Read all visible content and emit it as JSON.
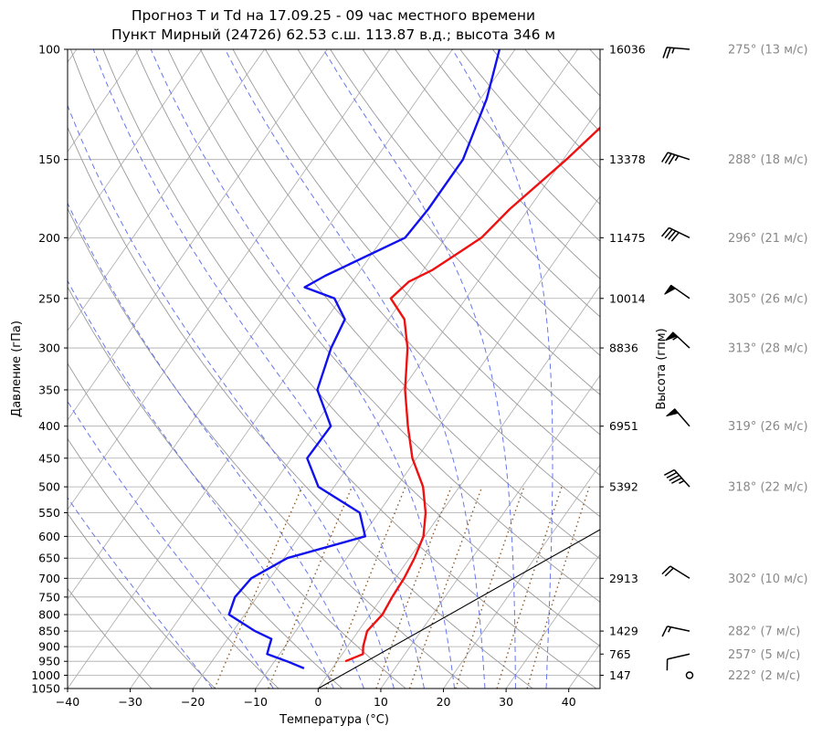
{
  "title_line1": "Прогноз T и Td на 17.09.25 - 09 час местного времени",
  "title_line2": "Пункт Мирный (24726) 62.53 с.ш. 113.87 в.д.; высота 346 м",
  "chart_data": {
    "type": "line",
    "xlabel": "Температура (°C)",
    "ylabel": "Давление (гПа)",
    "ylabel_right": "Высота (гпм)",
    "xlim": [
      -40,
      45
    ],
    "ylim": [
      1050,
      100
    ],
    "y_scale": "log",
    "grid": true,
    "x_ticks": [
      "−40",
      "−30",
      "−20",
      "−10",
      "0",
      "10",
      "20",
      "30",
      "40"
    ],
    "pressure_ticks": [
      "100",
      "150",
      "200",
      "250",
      "300",
      "350",
      "400",
      "450",
      "500",
      "550",
      "600",
      "650",
      "700",
      "750",
      "800",
      "850",
      "900",
      "950",
      "1000",
      "1050"
    ],
    "height_ticks": [
      {
        "p": 100,
        "label": "16036"
      },
      {
        "p": 150,
        "label": "13378"
      },
      {
        "p": 200,
        "label": "11475"
      },
      {
        "p": 250,
        "label": "10014"
      },
      {
        "p": 300,
        "label": "8836"
      },
      {
        "p": 400,
        "label": "6951"
      },
      {
        "p": 500,
        "label": "5392"
      },
      {
        "p": 700,
        "label": "2913"
      },
      {
        "p": 850,
        "label": "1429"
      },
      {
        "p": 925,
        "label": "765"
      },
      {
        "p": 1000,
        "label": "147"
      }
    ],
    "series": [
      {
        "color": "#ee1111",
        "points": [
          [
            950,
            1.3
          ],
          [
            925,
            3.3
          ],
          [
            900,
            2.5
          ],
          [
            850,
            1.4
          ],
          [
            800,
            2.0
          ],
          [
            750,
            1.6
          ],
          [
            700,
            1.4
          ],
          [
            650,
            0.8
          ],
          [
            600,
            -0.2
          ],
          [
            550,
            -2.5
          ],
          [
            500,
            -5.8
          ],
          [
            450,
            -10.7
          ],
          [
            400,
            -15.0
          ],
          [
            350,
            -19.5
          ],
          [
            300,
            -23.8
          ],
          [
            270,
            -27.5
          ],
          [
            250,
            -32.0
          ],
          [
            235,
            -31.0
          ],
          [
            225,
            -28.5
          ],
          [
            200,
            -24.3
          ],
          [
            180,
            -23.0
          ],
          [
            150,
            -19.5
          ],
          [
            120,
            -16.0
          ],
          [
            100,
            -12.5
          ]
        ]
      },
      {
        "color": "#1111ee",
        "points": [
          [
            975,
            -4.5
          ],
          [
            950,
            -8.0
          ],
          [
            925,
            -12.0
          ],
          [
            900,
            -12.5
          ],
          [
            875,
            -13.0
          ],
          [
            850,
            -16.5
          ],
          [
            800,
            -22.5
          ],
          [
            750,
            -23.5
          ],
          [
            700,
            -23.0
          ],
          [
            650,
            -19.5
          ],
          [
            600,
            -9.5
          ],
          [
            550,
            -13.0
          ],
          [
            500,
            -22.5
          ],
          [
            450,
            -27.5
          ],
          [
            400,
            -27.3
          ],
          [
            350,
            -33.5
          ],
          [
            300,
            -36.0
          ],
          [
            270,
            -37.0
          ],
          [
            250,
            -41.0
          ],
          [
            240,
            -47.0
          ],
          [
            230,
            -45.0
          ],
          [
            200,
            -36.5
          ],
          [
            180,
            -36.0
          ],
          [
            150,
            -36.0
          ],
          [
            120,
            -39.0
          ],
          [
            100,
            -42.5
          ]
        ]
      }
    ],
    "parcel_line": {
      "color": "#000000",
      "points": [
        [
          1050,
          0
        ],
        [
          400,
          45
        ]
      ]
    },
    "winds": [
      {
        "p": 100,
        "dir": 275,
        "speed": 13,
        "label": "275° (13 м/с)"
      },
      {
        "p": 150,
        "dir": 288,
        "speed": 18,
        "label": "288° (18 м/с)"
      },
      {
        "p": 200,
        "dir": 296,
        "speed": 21,
        "label": "296° (21 м/с)"
      },
      {
        "p": 250,
        "dir": 305,
        "speed": 26,
        "label": "305° (26 м/с)"
      },
      {
        "p": 300,
        "dir": 313,
        "speed": 28,
        "label": "313° (28 м/с)"
      },
      {
        "p": 400,
        "dir": 319,
        "speed": 26,
        "label": "319° (26 м/с)"
      },
      {
        "p": 500,
        "dir": 318,
        "speed": 22,
        "label": "318° (22 м/с)"
      },
      {
        "p": 700,
        "dir": 302,
        "speed": 10,
        "label": "302° (10 м/с)"
      },
      {
        "p": 850,
        "dir": 282,
        "speed": 7,
        "label": "282° (7 м/с)"
      },
      {
        "p": 925,
        "dir": 257,
        "speed": 5,
        "label": "257° (5 м/с)"
      },
      {
        "p": 1000,
        "dir": 222,
        "speed": 2,
        "label": "222° (2 м/с)"
      }
    ],
    "colors": {
      "isobars": "#aaaaaa",
      "dry_adiabats": "#999999",
      "moist_adiabats": "#6677ee",
      "mixing_ratio": "#8b5a2b",
      "wind_labels": "#888888"
    }
  }
}
